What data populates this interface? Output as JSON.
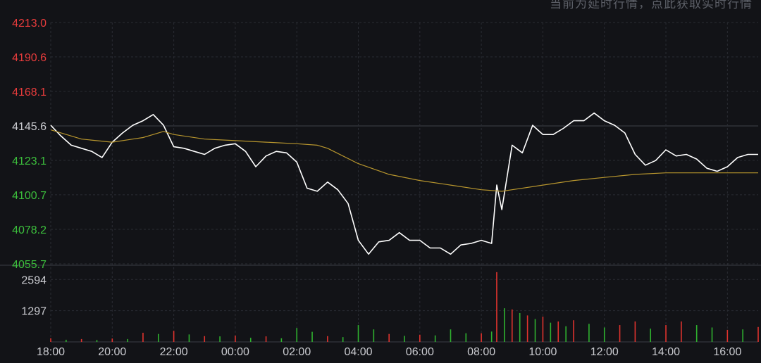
{
  "notice": "当前为延时行情，点此获取实时行情",
  "colors": {
    "background": "#121317",
    "grid": "#2a2c33",
    "price_line": "#ffffff",
    "avg_line": "#b8962e",
    "axis_up": "#e83c3c",
    "axis_down": "#3cbf3c",
    "axis_neutral": "#c9cacf",
    "volume_up": "#e0332e",
    "volume_down": "#2fb12f"
  },
  "chart_data": [
    {
      "type": "line",
      "title": "",
      "reference_price": 4145.6,
      "ylim": [
        4055.7,
        4213.0
      ],
      "y_ticks": [
        "4213.0",
        "4190.6",
        "4168.1",
        "4145.6",
        "4123.1",
        "4100.7",
        "4078.2",
        "4055.7"
      ],
      "x_ticks": [
        "18:00",
        "20:00",
        "22:00",
        "00:00",
        "02:00",
        "04:00",
        "06:00",
        "08:00",
        "10:00",
        "12:00",
        "14:00",
        "16:00"
      ],
      "series": [
        {
          "role": "price",
          "x": [
            "18:00",
            "18:20",
            "18:40",
            "19:00",
            "19:20",
            "19:40",
            "20:00",
            "20:20",
            "20:40",
            "21:00",
            "21:20",
            "21:40",
            "22:00",
            "22:20",
            "22:40",
            "23:00",
            "23:20",
            "23:40",
            "00:00",
            "00:20",
            "00:40",
            "01:00",
            "01:20",
            "01:40",
            "02:00",
            "02:20",
            "02:40",
            "03:00",
            "03:20",
            "03:40",
            "04:00",
            "04:20",
            "04:40",
            "05:00",
            "05:20",
            "05:40",
            "06:00",
            "06:20",
            "06:40",
            "07:00",
            "07:20",
            "07:40",
            "08:00",
            "08:20",
            "08:30",
            "08:40",
            "09:00",
            "09:20",
            "09:40",
            "10:00",
            "10:20",
            "10:40",
            "11:00",
            "11:20",
            "11:40",
            "12:00",
            "12:20",
            "12:40",
            "13:00",
            "13:20",
            "13:40",
            "14:00",
            "14:20",
            "14:40",
            "15:00",
            "15:20",
            "15:40",
            "16:00",
            "16:20",
            "16:40",
            "17:00"
          ],
          "values": [
            4146,
            4139,
            4133,
            4131,
            4129,
            4125,
            4135,
            4141,
            4146,
            4149,
            4153,
            4146,
            4132,
            4131,
            4129,
            4127,
            4131,
            4133,
            4134,
            4129,
            4119,
            4126,
            4129,
            4128,
            4122,
            4105,
            4103,
            4109,
            4104,
            4095,
            4071,
            4062,
            4070,
            4071,
            4076,
            4071,
            4071,
            4066,
            4066,
            4062,
            4068,
            4069,
            4071,
            4069,
            4107,
            4091,
            4133,
            4128,
            4146,
            4140,
            4140,
            4144,
            4149,
            4149,
            4154,
            4149,
            4146,
            4141,
            4127,
            4120,
            4123,
            4130,
            4126,
            4127,
            4124,
            4118,
            4116,
            4119,
            4125,
            4127,
            4127
          ]
        },
        {
          "role": "average",
          "x": [
            "18:00",
            "19:00",
            "20:00",
            "20:40",
            "21:00",
            "21:20",
            "21:40",
            "22:00",
            "23:00",
            "00:00",
            "01:00",
            "02:00",
            "02:40",
            "03:00",
            "04:00",
            "05:00",
            "06:00",
            "07:00",
            "08:00",
            "08:40",
            "09:00",
            "10:00",
            "11:00",
            "12:00",
            "13:00",
            "14:00",
            "15:00",
            "16:00",
            "17:00"
          ],
          "values": [
            4143,
            4137,
            4135,
            4137,
            4138,
            4140,
            4142,
            4140,
            4137,
            4136,
            4135,
            4134,
            4133,
            4131,
            4121,
            4114,
            4110,
            4107,
            4104,
            4103,
            4104,
            4107,
            4110,
            4112,
            4114,
            4115,
            4115,
            4115,
            4115
          ]
        }
      ]
    },
    {
      "type": "bar",
      "title": "",
      "ylim": [
        0,
        3100
      ],
      "y_ticks": [
        "2594",
        "1297"
      ],
      "x": [
        "18:00",
        "18:30",
        "19:00",
        "19:30",
        "20:00",
        "20:30",
        "21:00",
        "21:30",
        "22:00",
        "22:30",
        "23:00",
        "23:30",
        "00:00",
        "00:30",
        "01:00",
        "01:30",
        "02:00",
        "02:30",
        "03:00",
        "03:30",
        "04:00",
        "04:30",
        "05:00",
        "05:30",
        "06:00",
        "06:30",
        "07:00",
        "07:30",
        "08:00",
        "08:20",
        "08:30",
        "08:45",
        "09:00",
        "09:15",
        "09:30",
        "09:45",
        "10:00",
        "10:15",
        "10:30",
        "10:45",
        "11:00",
        "11:30",
        "12:00",
        "12:30",
        "13:00",
        "13:30",
        "14:00",
        "14:30",
        "15:00",
        "15:30",
        "16:00",
        "16:30",
        "17:00"
      ],
      "values": [
        150,
        90,
        120,
        80,
        140,
        120,
        380,
        330,
        460,
        310,
        240,
        230,
        260,
        170,
        230,
        150,
        580,
        420,
        240,
        200,
        700,
        520,
        330,
        250,
        300,
        270,
        520,
        360,
        360,
        430,
        2900,
        1400,
        1350,
        1200,
        1100,
        950,
        1050,
        800,
        850,
        650,
        900,
        750,
        600,
        700,
        850,
        550,
        700,
        850,
        700,
        600,
        500,
        520,
        620
      ],
      "direction": [
        "up",
        "down",
        "up",
        "down",
        "up",
        "down",
        "up",
        "down",
        "up",
        "down",
        "up",
        "down",
        "up",
        "down",
        "up",
        "down",
        "down",
        "down",
        "up",
        "down",
        "down",
        "down",
        "up",
        "down",
        "up",
        "down",
        "down",
        "down",
        "up",
        "down",
        "up",
        "down",
        "up",
        "down",
        "up",
        "down",
        "up",
        "down",
        "up",
        "down",
        "up",
        "down",
        "down",
        "up",
        "up",
        "down",
        "up",
        "up",
        "down",
        "down",
        "up",
        "down",
        "up"
      ]
    }
  ]
}
